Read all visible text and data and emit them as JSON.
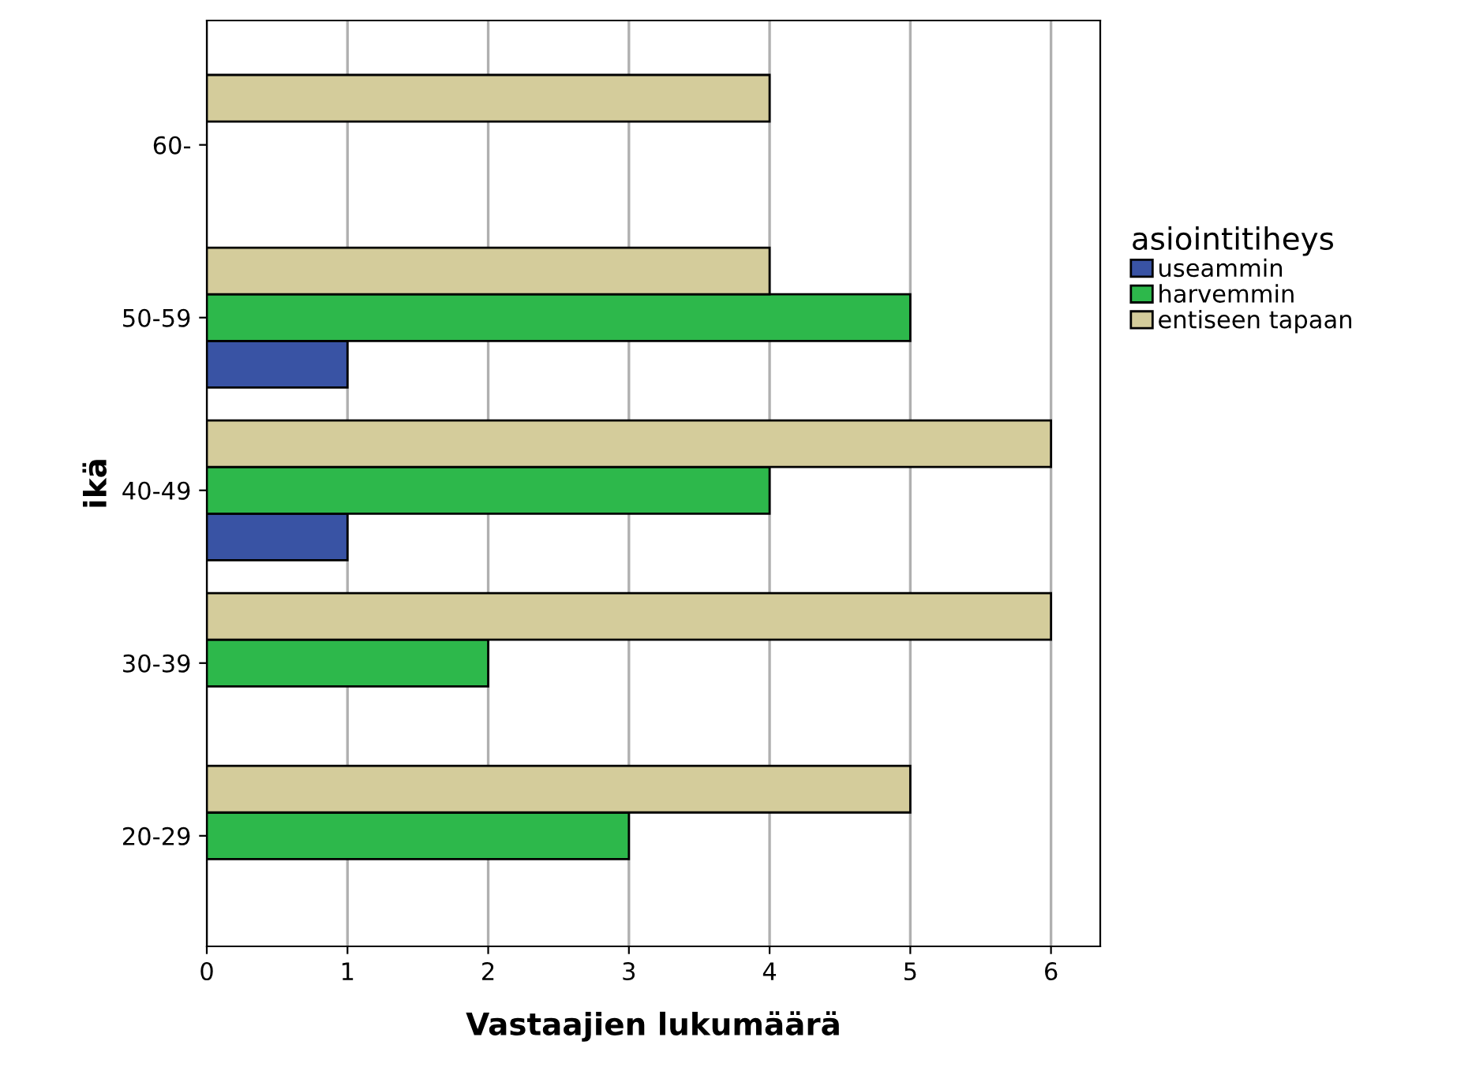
{
  "chart_data": {
    "type": "bar",
    "orientation": "horizontal",
    "xlabel": "Vastaajien lukumäärä",
    "ylabel": "ikä",
    "legend_title": "asiointitiheys",
    "categories": [
      "60-",
      "50-59",
      "40-49",
      "30-39",
      "20-29"
    ],
    "series": [
      {
        "name": "useammin",
        "color": "#3953a4",
        "values": [
          null,
          1,
          1,
          null,
          null
        ]
      },
      {
        "name": "harvemmin",
        "color": "#2db84b",
        "values": [
          null,
          5,
          4,
          2,
          3
        ]
      },
      {
        "name": "entiseen tapaan",
        "color": "#d4cc9b",
        "values": [
          4,
          4,
          6,
          6,
          5
        ]
      }
    ],
    "xlim": [
      0,
      6.35
    ],
    "xticks": [
      0,
      1,
      2,
      3,
      4,
      5,
      6
    ],
    "grid": "x",
    "legend": "right"
  }
}
